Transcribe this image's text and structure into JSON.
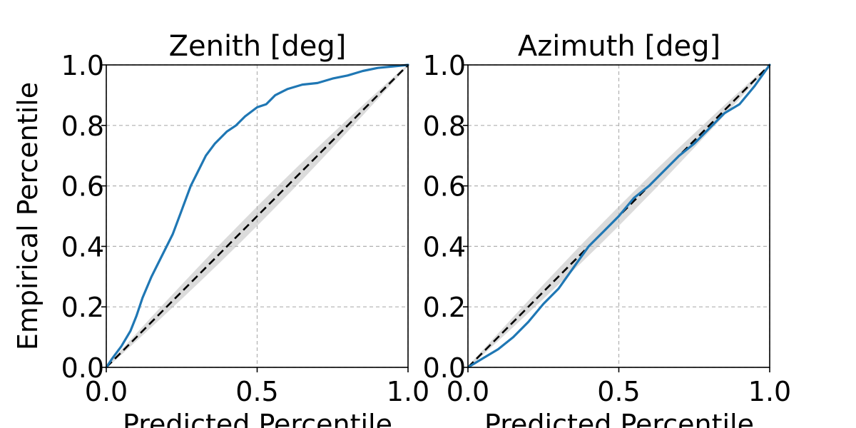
{
  "colors": {
    "series": "#1f77b4",
    "band": "#bdbdbd",
    "reference": "#000000",
    "grid": "#b0b0b0"
  },
  "y_axis_label": "Empirical Percentile",
  "chart_data": [
    {
      "type": "line",
      "title": "Zenith [deg]",
      "xlabel": "Predicted Percentile",
      "ylabel": "Empirical Percentile",
      "xlim": [
        0,
        1
      ],
      "ylim": [
        0,
        1
      ],
      "xticks": [
        "0.0",
        "0.5",
        "1.0"
      ],
      "yticks": [
        "0.0",
        "0.2",
        "0.4",
        "0.6",
        "0.8",
        "1.0"
      ],
      "grid": true,
      "reference_line": "y = x",
      "band": "gray uncertainty band around y = x",
      "series": [
        {
          "x": [
            0,
            0.02,
            0.05,
            0.08,
            0.1,
            0.12,
            0.15,
            0.18,
            0.2,
            0.22,
            0.25,
            0.28,
            0.3,
            0.33,
            0.36,
            0.4,
            0.43,
            0.46,
            0.5,
            0.53,
            0.56,
            0.6,
            0.65,
            0.7,
            0.75,
            0.8,
            0.85,
            0.9,
            0.95,
            1.0
          ],
          "values": [
            0,
            0.03,
            0.07,
            0.12,
            0.17,
            0.23,
            0.3,
            0.36,
            0.4,
            0.44,
            0.52,
            0.6,
            0.64,
            0.7,
            0.74,
            0.78,
            0.8,
            0.83,
            0.86,
            0.87,
            0.9,
            0.92,
            0.935,
            0.94,
            0.955,
            0.965,
            0.98,
            0.99,
            0.995,
            1.0
          ]
        }
      ]
    },
    {
      "type": "line",
      "title": "Azimuth [deg]",
      "xlabel": "Predicted Percentile",
      "ylabel": "",
      "xlim": [
        0,
        1
      ],
      "ylim": [
        0,
        1
      ],
      "xticks": [
        "0.0",
        "0.5",
        "1.0"
      ],
      "yticks": [
        "0.0",
        "0.2",
        "0.4",
        "0.6",
        "0.8",
        "1.0"
      ],
      "grid": true,
      "reference_line": "y = x",
      "band": "gray uncertainty band around y = x",
      "series": [
        {
          "x": [
            0,
            0.05,
            0.1,
            0.15,
            0.2,
            0.25,
            0.3,
            0.35,
            0.4,
            0.45,
            0.5,
            0.55,
            0.6,
            0.65,
            0.7,
            0.75,
            0.8,
            0.85,
            0.9,
            0.95,
            1.0
          ],
          "values": [
            0,
            0.03,
            0.06,
            0.1,
            0.15,
            0.21,
            0.26,
            0.33,
            0.4,
            0.45,
            0.5,
            0.56,
            0.6,
            0.65,
            0.7,
            0.74,
            0.79,
            0.84,
            0.87,
            0.93,
            1.0
          ]
        }
      ]
    }
  ]
}
